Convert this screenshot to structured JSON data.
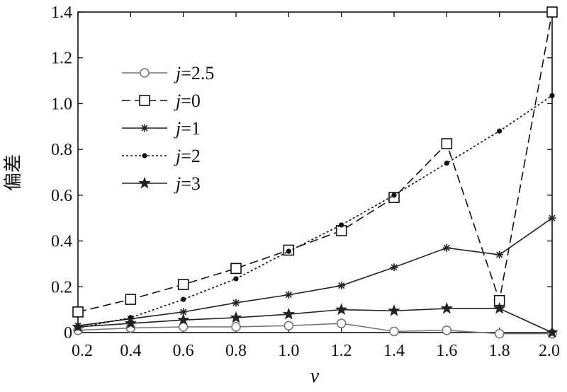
{
  "chart_data": {
    "type": "line",
    "xlabel": "v",
    "ylabel": "偏差",
    "xlim": [
      0.2,
      2.0
    ],
    "ylim": [
      0,
      1.4
    ],
    "xticks": [
      "0.2",
      "0.4",
      "0.6",
      "0.8",
      "1.0",
      "1.2",
      "1.4",
      "1.6",
      "1.8",
      "2.0"
    ],
    "yticks": [
      "0",
      "0.2",
      "0.4",
      "0.6",
      "0.8",
      "1.0",
      "1.2",
      "1.4"
    ],
    "grid": false,
    "legend_position": "upper-left",
    "x": [
      0.2,
      0.4,
      0.6,
      0.8,
      1.0,
      1.2,
      1.4,
      1.6,
      1.8,
      2.0
    ],
    "series": [
      {
        "name": "j=2.5",
        "label_var": "j",
        "label_rest": "=2.5",
        "marker": "circle",
        "dash": "solid",
        "color": "#777777",
        "values": [
          0.01,
          0.02,
          0.025,
          0.025,
          0.03,
          0.04,
          0.005,
          0.01,
          -0.005,
          -0.005
        ]
      },
      {
        "name": "j=0",
        "label_var": "j",
        "label_rest": "=0",
        "marker": "square",
        "dash": "dashed",
        "color": "#111111",
        "values": [
          0.09,
          0.145,
          0.21,
          0.28,
          0.36,
          0.445,
          0.59,
          0.825,
          0.14,
          1.4
        ]
      },
      {
        "name": "j=1",
        "label_var": "j",
        "label_rest": "=1",
        "marker": "plus-star",
        "dash": "solid",
        "color": "#222222",
        "values": [
          0.03,
          0.06,
          0.09,
          0.13,
          0.165,
          0.205,
          0.285,
          0.37,
          0.34,
          0.5
        ]
      },
      {
        "name": "j=2",
        "label_var": "j",
        "label_rest": "=2",
        "marker": "dot",
        "dash": "dotted",
        "color": "#111111",
        "values": [
          0.02,
          0.065,
          0.145,
          0.235,
          0.355,
          0.47,
          0.6,
          0.74,
          0.88,
          1.035
        ]
      },
      {
        "name": "j=3",
        "label_var": "j",
        "label_rest": "=3",
        "marker": "star",
        "dash": "solid",
        "color": "#222222",
        "values": [
          0.025,
          0.04,
          0.055,
          0.065,
          0.08,
          0.1,
          0.095,
          0.105,
          0.105,
          0.0
        ]
      }
    ]
  }
}
